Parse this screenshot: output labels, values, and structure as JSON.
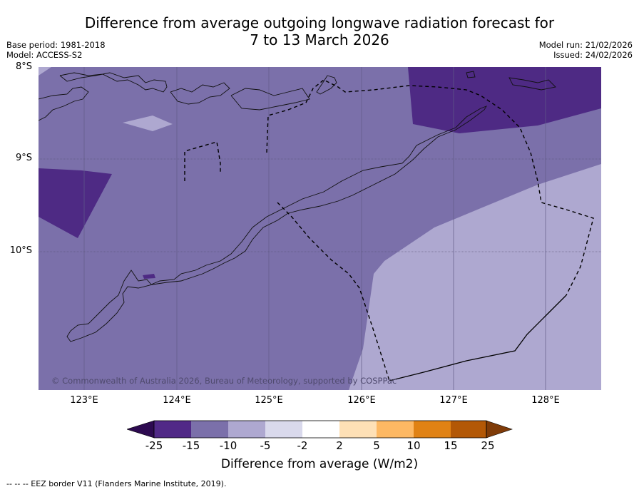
{
  "title_line1": "Difference from average outgoing longwave radiation forecast for",
  "title_line2": "7 to 13 March 2026",
  "meta": {
    "base_period": "Base period: 1981-2018",
    "model": "Model: ACCESS-S2",
    "model_run": "Model run: 21/02/2026",
    "issued": "Issued: 24/02/2026"
  },
  "map": {
    "lat_labels": [
      "8°S",
      "9°S",
      "10°S"
    ],
    "lon_labels": [
      "123°E",
      "124°E",
      "125°E",
      "126°E",
      "127°E",
      "128°E"
    ],
    "copyright": "© Commonwealth of Australia 2026, Bureau of Meteorology, supported by COSPPac",
    "region_colors": {
      "lt_minus15": "#4e2a84",
      "minus15_to_minus10": "#7b70aa",
      "minus10_to_minus5": "#aea8d0"
    }
  },
  "colorbar": {
    "title": "Difference from average (W/m2)",
    "tick_labels": [
      "-25",
      "-15",
      "-10",
      "-5",
      "-2",
      "2",
      "5",
      "10",
      "15",
      "25"
    ],
    "colors": [
      "#2d0a50",
      "#512987",
      "#7b70aa",
      "#aea8d0",
      "#d9d9ec",
      "#ffffff",
      "#fee0b6",
      "#fdb863",
      "#e08214",
      "#b35806",
      "#7f3b08"
    ]
  },
  "footnote": "-- -- -- EEZ border V11 (Flanders Marine Institute, 2019)."
}
